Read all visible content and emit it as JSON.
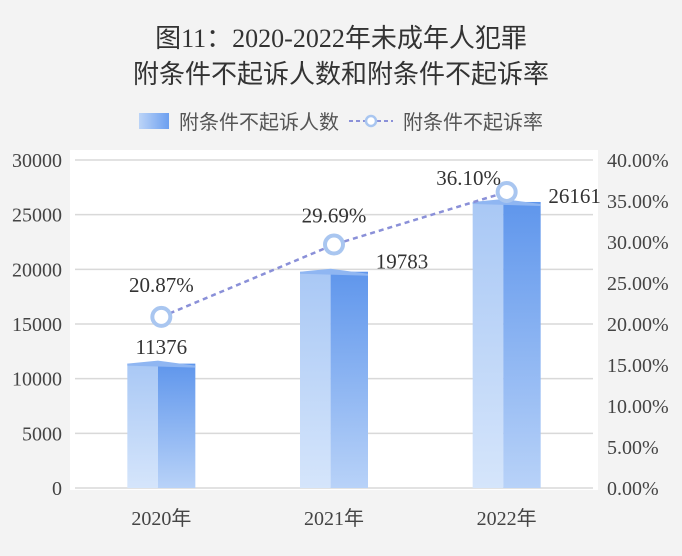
{
  "chart_data": {
    "type": "bar+line",
    "title": "图11：2020-2022年未成年人犯罪",
    "subtitle": "附条件不起诉人数和附条件不起诉率",
    "categories": [
      "2020年",
      "2021年",
      "2022年"
    ],
    "series": [
      {
        "name": "附条件不起诉人数",
        "type": "bar",
        "axis": "left",
        "values": [
          11376,
          19783,
          26161
        ],
        "labels": [
          "11376",
          "19783",
          "26161"
        ],
        "color": "#7aa9f0"
      },
      {
        "name": "附条件不起诉率",
        "type": "line",
        "axis": "right",
        "values": [
          20.87,
          29.69,
          36.1
        ],
        "labels": [
          "20.87%",
          "29.69%",
          "36.10%"
        ],
        "color": "#8a90d8"
      }
    ],
    "left_axis": {
      "ylim": [
        0,
        30000
      ],
      "ticks": [
        "0",
        "5000",
        "10000",
        "15000",
        "20000",
        "25000",
        "30000"
      ]
    },
    "right_axis": {
      "ylim": [
        0,
        40
      ],
      "ticks": [
        "0.00%",
        "5.00%",
        "10.00%",
        "15.00%",
        "20.00%",
        "25.00%",
        "30.00%",
        "35.00%",
        "40.00%"
      ]
    },
    "grid": true,
    "legend": "top"
  }
}
